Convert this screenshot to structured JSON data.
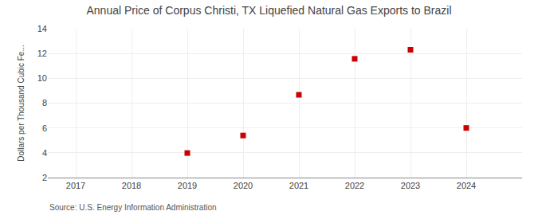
{
  "chart_data": {
    "type": "scatter",
    "title": "Annual Price of Corpus Christi, TX Liquefied Natural Gas Exports to Brazil",
    "ylabel": "Dollars per Thousand Cubic Fe...",
    "annotations": [
      "Source: U.S. Energy Information Administration"
    ],
    "x": [
      2019,
      2020,
      2021,
      2022,
      2023,
      2024
    ],
    "values": [
      3.98,
      5.39,
      8.67,
      11.57,
      12.3,
      6.0
    ],
    "color": "#cc0000",
    "marker": "square",
    "xlim": [
      2016.5,
      2025.0
    ],
    "xticks": [
      2017,
      2018,
      2019,
      2020,
      2021,
      2022,
      2023,
      2024
    ],
    "ylim": [
      2,
      14
    ],
    "yticks": [
      2,
      4,
      6,
      8,
      10,
      12,
      14
    ],
    "grid": true
  }
}
